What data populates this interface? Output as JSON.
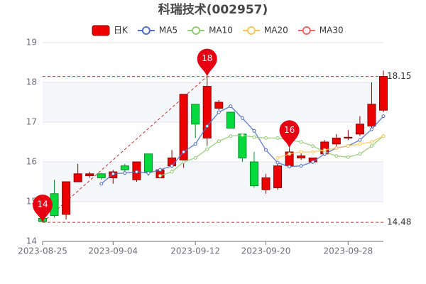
{
  "chart_data": {
    "type": "candlestick",
    "title": "科瑞技术(002957)",
    "categories": [
      "2023-08-25",
      null,
      null,
      null,
      null,
      null,
      "2023-09-04",
      null,
      null,
      null,
      null,
      null,
      null,
      "2023-09-12",
      null,
      null,
      null,
      null,
      null,
      "2023-09-20",
      null,
      null,
      null,
      null,
      null,
      null,
      "2023-09-28",
      null,
      null,
      null
    ],
    "candles": {
      "name": "日K",
      "up_color": "#ec0000",
      "down_color": "#00da3c",
      "open": [
        14.58,
        15.2,
        14.68,
        15.5,
        15.65,
        15.7,
        15.6,
        15.9,
        15.55,
        16.2,
        15.6,
        15.9,
        16.05,
        17.45,
        16.6,
        17.35,
        17.25,
        16.7,
        16.0,
        15.3,
        15.35,
        15.9,
        16.1,
        16.0,
        16.2,
        16.45,
        16.6,
        16.7,
        16.9,
        17.3
      ],
      "close": [
        14.5,
        14.65,
        15.5,
        15.7,
        15.7,
        15.6,
        15.75,
        15.8,
        16.0,
        15.75,
        15.8,
        16.1,
        17.7,
        16.95,
        17.9,
        17.5,
        16.85,
        16.1,
        15.4,
        15.6,
        15.9,
        16.25,
        16.15,
        16.1,
        16.5,
        16.6,
        16.62,
        16.95,
        17.45,
        18.15
      ],
      "high": [
        14.6,
        15.55,
        15.5,
        15.95,
        15.75,
        15.72,
        15.8,
        15.95,
        16.0,
        16.2,
        15.85,
        16.3,
        17.7,
        17.45,
        18.15,
        17.55,
        17.25,
        16.7,
        16.25,
        15.7,
        15.95,
        16.35,
        16.25,
        16.1,
        16.55,
        16.7,
        16.8,
        17.15,
        18.0,
        18.3
      ],
      "low": [
        14.48,
        14.6,
        14.55,
        15.5,
        15.6,
        15.55,
        15.45,
        15.75,
        15.5,
        15.65,
        15.6,
        15.85,
        15.85,
        16.6,
        16.4,
        17.3,
        16.85,
        16.0,
        15.35,
        15.2,
        15.3,
        15.85,
        16.05,
        15.95,
        16.15,
        16.35,
        16.55,
        16.65,
        16.85,
        17.25
      ]
    },
    "series": [
      {
        "name": "MA5",
        "color": "#5470c6",
        "values": [
          null,
          null,
          null,
          null,
          null,
          15.45,
          15.7,
          15.72,
          15.75,
          15.72,
          15.8,
          15.9,
          16.25,
          16.45,
          16.9,
          17.25,
          17.4,
          17.1,
          16.78,
          16.3,
          15.98,
          15.88,
          15.9,
          16.0,
          16.2,
          16.35,
          16.4,
          16.55,
          16.82,
          17.15
        ]
      },
      {
        "name": "MA10",
        "color": "#91cc75",
        "values": [
          null,
          null,
          null,
          null,
          null,
          null,
          null,
          null,
          null,
          null,
          15.65,
          15.75,
          16.0,
          16.1,
          16.32,
          16.52,
          16.65,
          16.67,
          16.62,
          16.6,
          16.6,
          16.55,
          16.5,
          16.4,
          16.25,
          16.15,
          16.12,
          16.2,
          16.4,
          16.65
        ]
      },
      {
        "name": "MA20",
        "color": "#fac858",
        "values": [
          null,
          null,
          null,
          null,
          null,
          null,
          null,
          null,
          null,
          null,
          null,
          null,
          null,
          null,
          null,
          null,
          null,
          null,
          null,
          null,
          16.1,
          16.2,
          16.25,
          16.25,
          16.3,
          16.35,
          16.4,
          16.45,
          16.5,
          16.65
        ]
      },
      {
        "name": "MA30",
        "color": "#ee6666",
        "values": [
          null,
          null,
          null,
          null,
          null,
          null,
          null,
          null,
          null,
          null,
          null,
          null,
          null,
          null,
          null,
          null,
          null,
          null,
          null,
          null,
          null,
          null,
          null,
          null,
          null,
          null,
          null,
          null,
          null,
          null
        ]
      }
    ],
    "mark_points": [
      {
        "index": 14,
        "value": 18.15,
        "label": "18"
      },
      {
        "index": 21,
        "value": 16.35,
        "label": "16"
      },
      {
        "index": 0,
        "value": 14.48,
        "label": "14"
      }
    ],
    "mark_lines": [
      {
        "value": 18.15
      },
      {
        "value": 14.48
      }
    ],
    "ylim": [
      14,
      19
    ],
    "yticks": [
      14,
      15,
      16,
      17,
      18,
      19
    ],
    "grid": true
  }
}
